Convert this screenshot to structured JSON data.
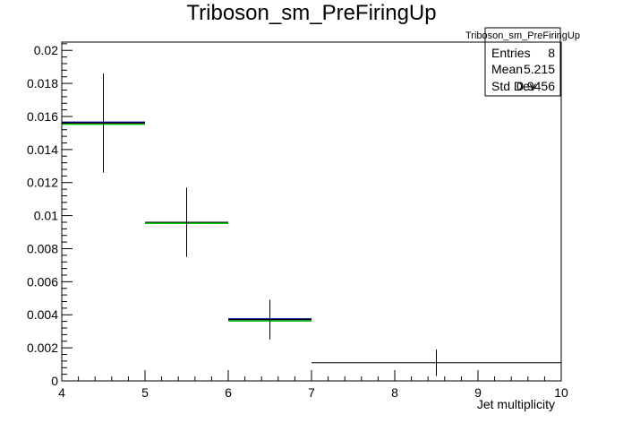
{
  "chart_data": {
    "type": "histogram",
    "title": "Triboson_sm_PreFiringUp",
    "xlabel": "Jet multiplicity",
    "ylabel": "",
    "xlim": [
      4,
      10
    ],
    "ylim": [
      0,
      0.0205
    ],
    "x_ticks": [
      "4",
      "5",
      "6",
      "7",
      "8",
      "9",
      "10"
    ],
    "y_ticks": [
      "0",
      "0.002",
      "0.004",
      "0.006",
      "0.008",
      "0.01",
      "0.012",
      "0.014",
      "0.016",
      "0.018",
      "0.02"
    ],
    "bins": [
      {
        "x_low": 4,
        "x_high": 5,
        "value": 0.0156,
        "err": 0.003
      },
      {
        "x_low": 5,
        "x_high": 6,
        "value": 0.0096,
        "err": 0.0021
      },
      {
        "x_low": 6,
        "x_high": 7,
        "value": 0.0037,
        "err": 0.0012
      },
      {
        "x_low": 7,
        "x_high": 10,
        "value": 0.0011,
        "err": 0.0008
      }
    ],
    "series_colors": {
      "line": "#000000",
      "overlay_green": "#00cc00",
      "overlay_navy": "#000080"
    },
    "stats": {
      "title": "Triboson_sm_PreFiringUp",
      "rows": [
        {
          "label": "Entries",
          "value": "8"
        },
        {
          "label": "Mean",
          "value": "5.215"
        },
        {
          "label": "Std Dev",
          "value": "0.9456"
        }
      ]
    }
  }
}
